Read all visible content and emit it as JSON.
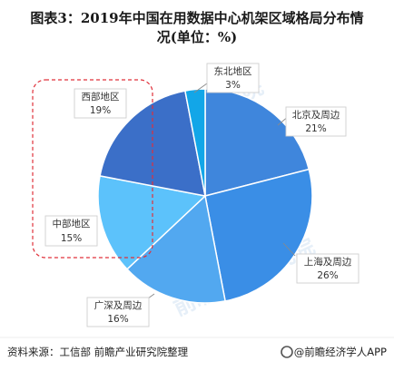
{
  "title": {
    "line1": "图表3：2019年中国在用数据中心机架区域格局分布情",
    "line2": "况(单位：%)"
  },
  "chart_data": {
    "type": "pie",
    "title": "图表3：2019年中国在用数据中心机架区域格局分布情况(单位：%)",
    "unit": "%",
    "start": "top, clockwise",
    "slices": [
      {
        "label": "北京及周边",
        "value": 21,
        "value_label": "21%",
        "color": "#3f86dc"
      },
      {
        "label": "上海及周边",
        "value": 26,
        "value_label": "26%",
        "color": "#3a8ee6"
      },
      {
        "label": "广深及周边",
        "value": 16,
        "value_label": "16%",
        "color": "#52a8f0"
      },
      {
        "label": "中部地区",
        "value": 15,
        "value_label": "15%",
        "color": "#5cc2fb"
      },
      {
        "label": "西部地区",
        "value": 19,
        "value_label": "19%",
        "color": "#3b6fc8"
      },
      {
        "label": "东北地区",
        "value": 3,
        "value_label": "3%",
        "color": "#12a6e8"
      }
    ],
    "highlight": {
      "slices": [
        "西部地区",
        "中部地区"
      ],
      "style": "red dashed rounded box"
    }
  },
  "footer": {
    "source": "资料来源：工信部  前瞻产业研究院整理",
    "brand": "@前瞻经济学人APP"
  },
  "watermark": {
    "text": "前瞻产业研究院"
  },
  "colors": {
    "border": "#cfcfcf",
    "leader_line": "#8a8a8a",
    "highlight": "#e0303a",
    "brand_icon": "#555555"
  }
}
